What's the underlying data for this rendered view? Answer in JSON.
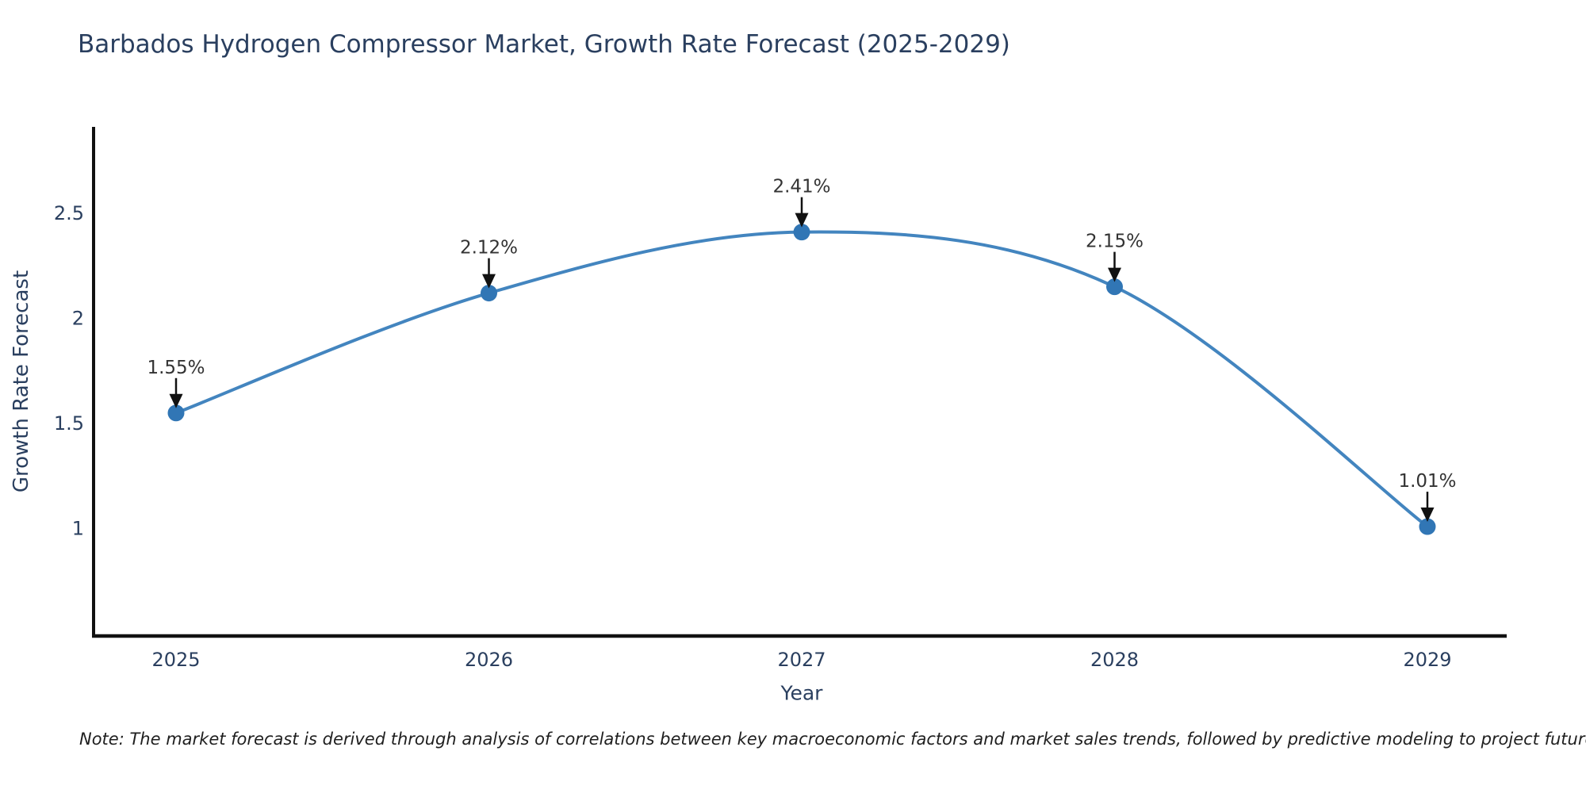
{
  "chart_data": {
    "type": "line",
    "title": "Barbados Hydrogen Compressor Market, Growth Rate Forecast (2025-2029)",
    "xlabel": "Year",
    "ylabel": "Growth Rate Forecast",
    "categories": [
      "2025",
      "2026",
      "2027",
      "2028",
      "2029"
    ],
    "values": [
      1.55,
      2.12,
      2.41,
      2.15,
      1.01
    ],
    "point_labels": [
      "1.55%",
      "2.12%",
      "2.41%",
      "2.15%",
      "1.01%"
    ],
    "ytick_labels": [
      "1",
      "1.5",
      "2",
      "2.5"
    ],
    "ytick_values": [
      1,
      1.5,
      2,
      2.5
    ],
    "ylim": [
      0.49,
      2.91
    ],
    "grid": false,
    "legend": "none",
    "line_shape": "spline",
    "marker_style": "circle",
    "annotation_arrows": true,
    "colors": {
      "line": "#4385bf",
      "marker": "#3176b5",
      "axis": "#111111",
      "tick_text": "#2a3f5f",
      "title_text": "#2a3f5f",
      "annotation_text": "#333333",
      "arrow": "#111111",
      "background": "#ffffff"
    }
  },
  "note": "Note: The market forecast is derived through analysis of correlations between key macroeconomic factors and market sales trends, followed by predictive modeling to project future sales"
}
